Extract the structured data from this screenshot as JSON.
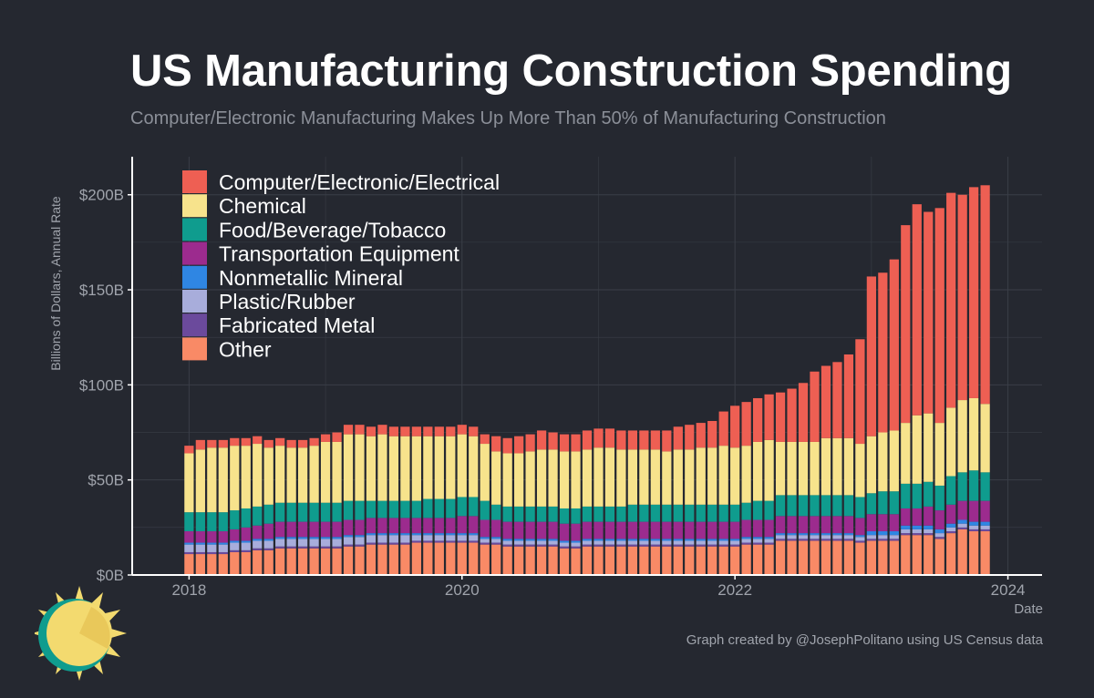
{
  "header": {
    "title": "US Manufacturing Construction Spending",
    "subtitle": "Computer/Electronic Manufacturing Makes Up More Than 50% of Manufacturing Construction"
  },
  "caption": "Graph created by @JosephPolitano using US Census data",
  "colors": {
    "background": "#252830",
    "grid": "#3a3e47",
    "axis": "#ffffff",
    "logo_sun": "#f3da6f",
    "logo_ring": "#0f9c8e"
  },
  "chart_data": {
    "type": "bar",
    "stacked": true,
    "title": "US Manufacturing Construction Spending",
    "subtitle": "Computer/Electronic Manufacturing Makes Up More Than 50% of Manufacturing Construction",
    "xlabel": "Date",
    "ylabel": "Billions of Dollars, Annual Rate",
    "ylim": [
      0,
      220
    ],
    "xlim": [
      "2017-08",
      "2024-04"
    ],
    "xticks": [
      "2018",
      "2020",
      "2022",
      "2024"
    ],
    "yticks": [
      "$0B",
      "$50B",
      "$100B",
      "$150B",
      "$200B"
    ],
    "ytick_values": [
      0,
      50,
      100,
      150,
      200
    ],
    "grid": true,
    "legend_position": "top-left",
    "x": [
      "2018-01",
      "2018-02",
      "2018-03",
      "2018-04",
      "2018-05",
      "2018-06",
      "2018-07",
      "2018-08",
      "2018-09",
      "2018-10",
      "2018-11",
      "2018-12",
      "2019-01",
      "2019-02",
      "2019-03",
      "2019-04",
      "2019-05",
      "2019-06",
      "2019-07",
      "2019-08",
      "2019-09",
      "2019-10",
      "2019-11",
      "2019-12",
      "2020-01",
      "2020-02",
      "2020-03",
      "2020-04",
      "2020-05",
      "2020-06",
      "2020-07",
      "2020-08",
      "2020-09",
      "2020-10",
      "2020-11",
      "2020-12",
      "2021-01",
      "2021-02",
      "2021-03",
      "2021-04",
      "2021-05",
      "2021-06",
      "2021-07",
      "2021-08",
      "2021-09",
      "2021-10",
      "2021-11",
      "2021-12",
      "2022-01",
      "2022-02",
      "2022-03",
      "2022-04",
      "2022-05",
      "2022-06",
      "2022-07",
      "2022-08",
      "2022-09",
      "2022-10",
      "2022-11",
      "2022-12",
      "2023-01",
      "2023-02",
      "2023-03",
      "2023-04",
      "2023-05",
      "2023-06",
      "2023-07",
      "2023-08",
      "2023-09",
      "2023-10",
      "2023-11"
    ],
    "series": [
      {
        "name": "Other",
        "color": "#f98a66",
        "values": [
          11,
          11,
          11,
          11,
          12,
          12,
          13,
          13,
          14,
          14,
          14,
          14,
          14,
          14,
          15,
          15,
          16,
          16,
          16,
          16,
          17,
          17,
          17,
          17,
          17,
          17,
          16,
          16,
          15,
          15,
          15,
          15,
          15,
          14,
          14,
          15,
          15,
          15,
          15,
          15,
          15,
          15,
          15,
          15,
          15,
          15,
          15,
          15,
          15,
          16,
          16,
          16,
          18,
          18,
          18,
          18,
          18,
          18,
          18,
          17,
          18,
          18,
          18,
          21,
          21,
          21,
          19,
          22,
          24,
          23,
          23
        ]
      },
      {
        "name": "Fabricated Metal",
        "color": "#6b4a9c",
        "values": [
          1,
          1,
          1,
          1,
          1,
          1,
          1,
          1,
          1,
          1,
          1,
          1,
          1,
          1,
          1,
          1,
          1,
          1,
          1,
          1,
          1,
          1,
          1,
          1,
          1,
          1,
          1,
          1,
          1,
          1,
          1,
          1,
          1,
          1,
          1,
          1,
          1,
          1,
          1,
          1,
          1,
          1,
          1,
          1,
          1,
          1,
          1,
          1,
          1,
          1,
          1,
          1,
          1,
          1,
          1,
          1,
          1,
          1,
          1,
          1,
          1,
          1,
          1,
          1,
          1,
          1,
          1,
          1,
          1,
          1,
          1
        ]
      },
      {
        "name": "Plastic/Rubber",
        "color": "#a8addb",
        "values": [
          4,
          4,
          4,
          4,
          4,
          4,
          4,
          4,
          4,
          4,
          4,
          4,
          4,
          4,
          4,
          4,
          4,
          4,
          4,
          4,
          3,
          3,
          3,
          3,
          3,
          3,
          2,
          2,
          2,
          2,
          2,
          2,
          2,
          2,
          2,
          2,
          2,
          2,
          2,
          2,
          2,
          2,
          2,
          2,
          2,
          2,
          2,
          2,
          2,
          2,
          2,
          2,
          2,
          2,
          2,
          2,
          2,
          2,
          2,
          2,
          2,
          2,
          2,
          2,
          2,
          2,
          2,
          2,
          2,
          2,
          2
        ]
      },
      {
        "name": "Nonmetallic Mineral",
        "color": "#2f86e3",
        "values": [
          1,
          1,
          1,
          1,
          1,
          1,
          1,
          1,
          1,
          1,
          1,
          1,
          1,
          1,
          1,
          1,
          1,
          1,
          1,
          1,
          1,
          1,
          1,
          1,
          1,
          1,
          1,
          1,
          1,
          1,
          1,
          1,
          1,
          1,
          1,
          1,
          1,
          1,
          1,
          1,
          1,
          1,
          1,
          1,
          1,
          1,
          1,
          1,
          1,
          1,
          1,
          1,
          1,
          1,
          1,
          1,
          1,
          1,
          1,
          1,
          2,
          2,
          2,
          2,
          2,
          2,
          2,
          2,
          2,
          2,
          2
        ]
      },
      {
        "name": "Transportation Equipment",
        "color": "#9c2b8e",
        "values": [
          6,
          6,
          6,
          6,
          6,
          7,
          7,
          8,
          8,
          8,
          8,
          8,
          8,
          8,
          8,
          8,
          8,
          8,
          8,
          8,
          8,
          8,
          8,
          8,
          9,
          9,
          9,
          9,
          9,
          9,
          9,
          9,
          9,
          9,
          9,
          9,
          9,
          9,
          9,
          9,
          9,
          9,
          9,
          9,
          9,
          9,
          9,
          9,
          9,
          9,
          9,
          9,
          9,
          9,
          9,
          9,
          9,
          9,
          9,
          9,
          9,
          9,
          9,
          9,
          9,
          10,
          10,
          10,
          10,
          11,
          11
        ]
      },
      {
        "name": "Food/Beverage/Tobacco",
        "color": "#0f9c8e",
        "values": [
          10,
          10,
          10,
          10,
          10,
          10,
          10,
          10,
          10,
          10,
          10,
          10,
          10,
          10,
          10,
          10,
          9,
          9,
          9,
          9,
          9,
          10,
          10,
          10,
          10,
          10,
          10,
          8,
          8,
          8,
          8,
          8,
          8,
          8,
          8,
          8,
          8,
          8,
          8,
          9,
          9,
          9,
          9,
          9,
          9,
          9,
          9,
          9,
          9,
          9,
          10,
          10,
          11,
          11,
          11,
          11,
          11,
          11,
          11,
          11,
          11,
          12,
          12,
          13,
          13,
          13,
          13,
          15,
          15,
          16,
          15
        ]
      },
      {
        "name": "Chemical",
        "color": "#f7e38c",
        "values": [
          31,
          33,
          34,
          34,
          34,
          33,
          33,
          30,
          30,
          29,
          29,
          30,
          32,
          32,
          35,
          35,
          34,
          35,
          34,
          34,
          34,
          33,
          33,
          33,
          33,
          32,
          30,
          28,
          28,
          28,
          29,
          30,
          30,
          30,
          30,
          30,
          31,
          31,
          30,
          29,
          29,
          29,
          28,
          29,
          29,
          30,
          30,
          31,
          30,
          30,
          31,
          32,
          28,
          28,
          28,
          28,
          30,
          30,
          30,
          28,
          30,
          31,
          32,
          32,
          36,
          36,
          33,
          36,
          38,
          38,
          36
        ]
      },
      {
        "name": "Computer/Electronic/Electrical",
        "color": "#ee5f53",
        "values": [
          4,
          5,
          4,
          4,
          4,
          4,
          4,
          4,
          4,
          4,
          4,
          4,
          4,
          5,
          5,
          5,
          5,
          5,
          5,
          5,
          5,
          5,
          5,
          5,
          5,
          5,
          5,
          8,
          8,
          9,
          9,
          10,
          9,
          9,
          9,
          10,
          10,
          10,
          10,
          10,
          10,
          10,
          11,
          12,
          13,
          13,
          14,
          18,
          22,
          23,
          23,
          24,
          26,
          28,
          31,
          37,
          38,
          40,
          44,
          55,
          84,
          84,
          90,
          104,
          111,
          106,
          113,
          113,
          108,
          111,
          115
        ]
      }
    ]
  },
  "logo": {
    "name": "sun-logo"
  }
}
